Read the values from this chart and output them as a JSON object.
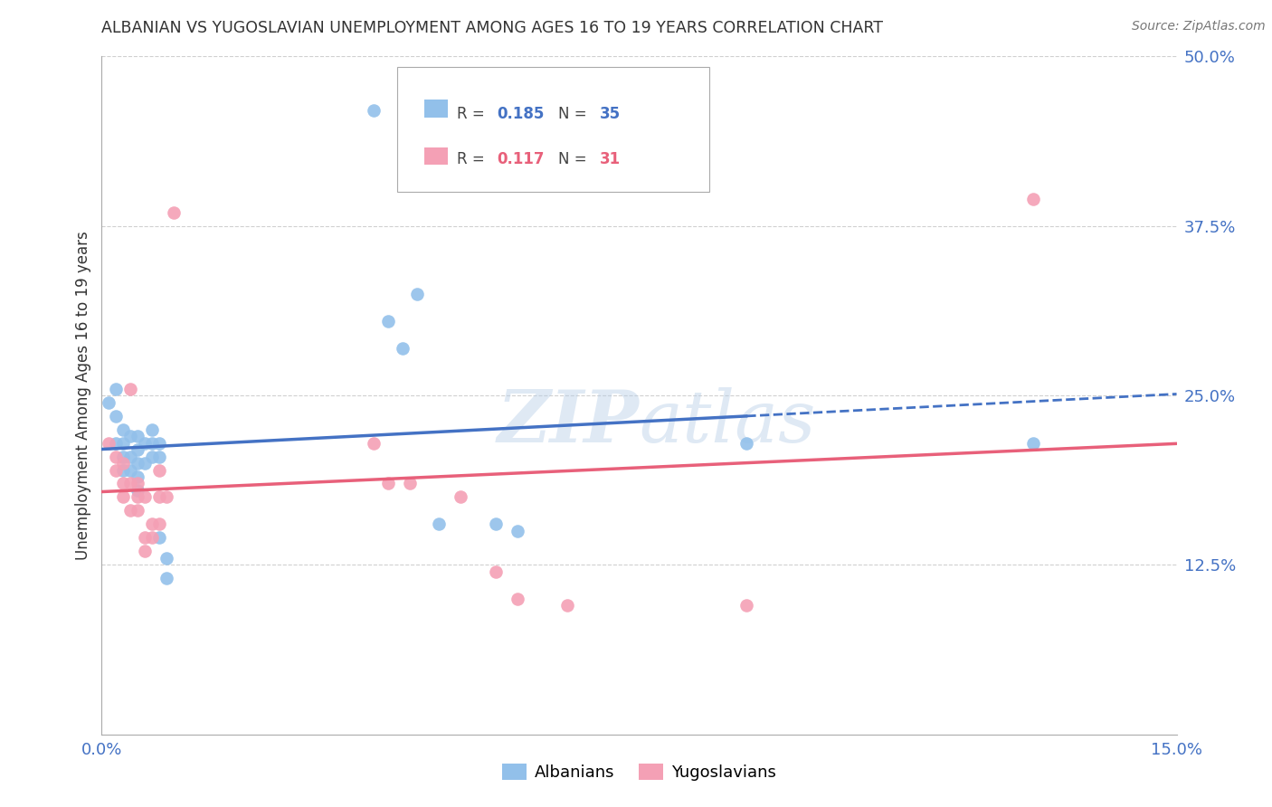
{
  "title": "ALBANIAN VS YUGOSLAVIAN UNEMPLOYMENT AMONG AGES 16 TO 19 YEARS CORRELATION CHART",
  "source": "Source: ZipAtlas.com",
  "ylabel": "Unemployment Among Ages 16 to 19 years",
  "xlim": [
    0.0,
    0.15
  ],
  "ylim": [
    0.0,
    0.5
  ],
  "albanian_color": "#92c0ea",
  "yugoslavian_color": "#f4a0b5",
  "albanian_line_color": "#4472c4",
  "yugoslavian_line_color": "#e8607a",
  "albanian_scatter": [
    [
      0.001,
      0.245
    ],
    [
      0.002,
      0.255
    ],
    [
      0.002,
      0.235
    ],
    [
      0.002,
      0.215
    ],
    [
      0.003,
      0.225
    ],
    [
      0.003,
      0.215
    ],
    [
      0.003,
      0.205
    ],
    [
      0.003,
      0.195
    ],
    [
      0.004,
      0.22
    ],
    [
      0.004,
      0.205
    ],
    [
      0.004,
      0.195
    ],
    [
      0.005,
      0.22
    ],
    [
      0.005,
      0.21
    ],
    [
      0.005,
      0.2
    ],
    [
      0.005,
      0.19
    ],
    [
      0.005,
      0.18
    ],
    [
      0.006,
      0.215
    ],
    [
      0.006,
      0.2
    ],
    [
      0.007,
      0.225
    ],
    [
      0.007,
      0.215
    ],
    [
      0.007,
      0.205
    ],
    [
      0.008,
      0.215
    ],
    [
      0.008,
      0.205
    ],
    [
      0.008,
      0.145
    ],
    [
      0.009,
      0.13
    ],
    [
      0.009,
      0.115
    ],
    [
      0.038,
      0.46
    ],
    [
      0.04,
      0.305
    ],
    [
      0.042,
      0.285
    ],
    [
      0.044,
      0.325
    ],
    [
      0.047,
      0.155
    ],
    [
      0.055,
      0.155
    ],
    [
      0.058,
      0.15
    ],
    [
      0.09,
      0.215
    ],
    [
      0.13,
      0.215
    ]
  ],
  "yugoslavian_scatter": [
    [
      0.001,
      0.215
    ],
    [
      0.002,
      0.205
    ],
    [
      0.002,
      0.195
    ],
    [
      0.003,
      0.2
    ],
    [
      0.003,
      0.185
    ],
    [
      0.003,
      0.175
    ],
    [
      0.004,
      0.255
    ],
    [
      0.004,
      0.185
    ],
    [
      0.004,
      0.165
    ],
    [
      0.005,
      0.185
    ],
    [
      0.005,
      0.175
    ],
    [
      0.005,
      0.165
    ],
    [
      0.006,
      0.175
    ],
    [
      0.006,
      0.145
    ],
    [
      0.006,
      0.135
    ],
    [
      0.007,
      0.155
    ],
    [
      0.007,
      0.145
    ],
    [
      0.008,
      0.195
    ],
    [
      0.008,
      0.175
    ],
    [
      0.008,
      0.155
    ],
    [
      0.009,
      0.175
    ],
    [
      0.01,
      0.385
    ],
    [
      0.038,
      0.215
    ],
    [
      0.04,
      0.185
    ],
    [
      0.043,
      0.185
    ],
    [
      0.05,
      0.175
    ],
    [
      0.055,
      0.12
    ],
    [
      0.058,
      0.1
    ],
    [
      0.065,
      0.095
    ],
    [
      0.09,
      0.095
    ],
    [
      0.13,
      0.395
    ]
  ],
  "watermark": "ZIPatlas",
  "background_color": "#ffffff",
  "grid_color": "#d0d0d0",
  "legend_albanian_r": "0.185",
  "legend_albanian_n": "35",
  "legend_yugoslavian_r": "0.117",
  "legend_yugoslavian_n": "31"
}
